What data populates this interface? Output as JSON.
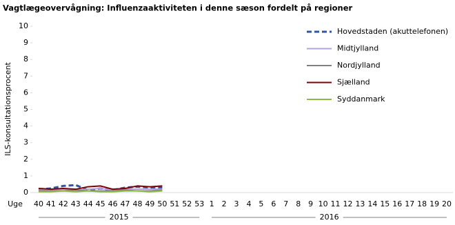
{
  "chart_data": {
    "type": "line",
    "title": "Vagtlægeovervågning: Influenzaaktiviteten i denne sæson fordelt på regioner",
    "ylabel": "ILS-konsultationsprocent",
    "xlabel": "Uge",
    "categories": [
      "40",
      "41",
      "42",
      "43",
      "44",
      "45",
      "46",
      "47",
      "48",
      "49",
      "50",
      "51",
      "52",
      "53",
      "1",
      "2",
      "3",
      "4",
      "5",
      "6",
      "7",
      "8",
      "9",
      "10",
      "11",
      "12",
      "13",
      "14",
      "15",
      "16",
      "17",
      "18",
      "19",
      "20"
    ],
    "x_groups": [
      {
        "label": "2015",
        "count": 14
      },
      {
        "label": "2016",
        "count": 20
      }
    ],
    "ylim": [
      0,
      10
    ],
    "yticks": [
      0,
      1,
      2,
      3,
      4,
      5,
      6,
      7,
      8,
      9,
      10
    ],
    "legend": "top-right",
    "series": [
      {
        "name": "Hovedstaden (akuttelefonen)",
        "color": "#2f55a4",
        "dashed": true,
        "values": [
          0.2,
          0.25,
          0.4,
          0.45,
          0.15,
          0.25,
          0.15,
          0.3,
          0.35,
          0.3,
          0.3,
          null,
          null,
          null,
          null,
          null,
          null,
          null,
          null,
          null,
          null,
          null,
          null,
          null,
          null,
          null,
          null,
          null,
          null,
          null,
          null,
          null,
          null,
          null
        ]
      },
      {
        "name": "Midtjylland",
        "color": "#b9a0e0",
        "dashed": false,
        "values": [
          0.15,
          0.15,
          0.2,
          0.15,
          0.2,
          0.25,
          0.15,
          0.2,
          0.2,
          0.2,
          0.2,
          null,
          null,
          null,
          null,
          null,
          null,
          null,
          null,
          null,
          null,
          null,
          null,
          null,
          null,
          null,
          null,
          null,
          null,
          null,
          null,
          null,
          null,
          null
        ]
      },
      {
        "name": "Nordjylland",
        "color": "#808080",
        "dashed": false,
        "values": [
          0.1,
          0.1,
          0.1,
          0.15,
          0.1,
          0.1,
          0.1,
          0.15,
          0.1,
          0.1,
          0.15,
          null,
          null,
          null,
          null,
          null,
          null,
          null,
          null,
          null,
          null,
          null,
          null,
          null,
          null,
          null,
          null,
          null,
          null,
          null,
          null,
          null,
          null,
          null
        ]
      },
      {
        "name": "Sjælland",
        "color": "#800000",
        "dashed": false,
        "values": [
          0.25,
          0.2,
          0.25,
          0.2,
          0.35,
          0.4,
          0.2,
          0.25,
          0.4,
          0.35,
          0.4,
          null,
          null,
          null,
          null,
          null,
          null,
          null,
          null,
          null,
          null,
          null,
          null,
          null,
          null,
          null,
          null,
          null,
          null,
          null,
          null,
          null,
          null,
          null
        ]
      },
      {
        "name": "Syddanmark",
        "color": "#8dbb40",
        "dashed": false,
        "values": [
          0.05,
          0.05,
          0.1,
          0.05,
          0.1,
          0.05,
          0.05,
          0.1,
          0.1,
          0.05,
          0.1,
          null,
          null,
          null,
          null,
          null,
          null,
          null,
          null,
          null,
          null,
          null,
          null,
          null,
          null,
          null,
          null,
          null,
          null,
          null,
          null,
          null,
          null,
          null
        ]
      }
    ]
  }
}
